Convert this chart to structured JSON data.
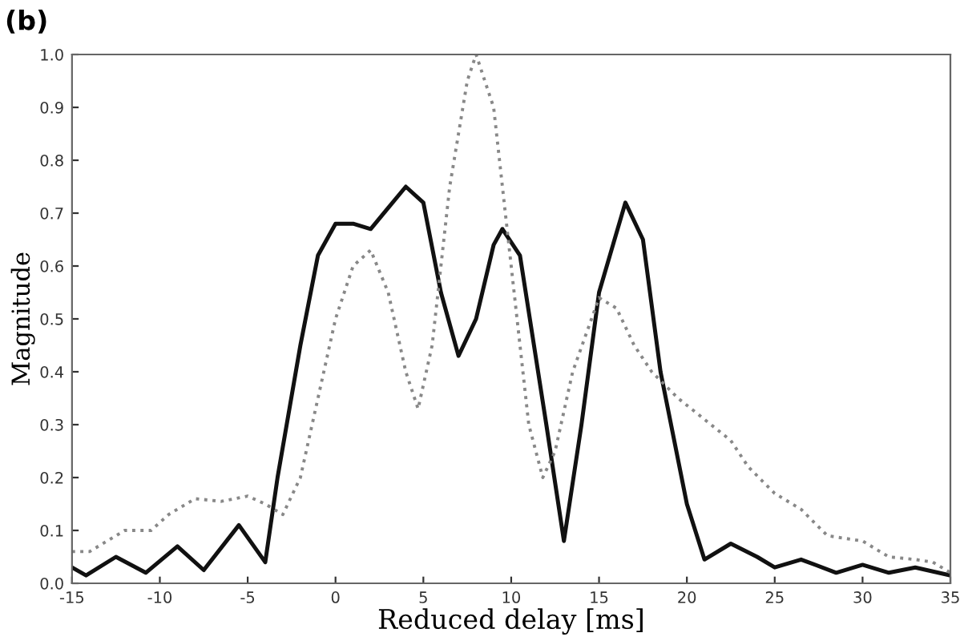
{
  "chart_data": {
    "type": "line",
    "title": "(b)",
    "xlabel": "Reduced delay [ms]",
    "ylabel": "Magnitude",
    "xlim": [
      -15,
      35
    ],
    "xticks": [
      -15,
      -10,
      -5,
      0,
      5,
      10,
      15,
      20,
      25,
      30,
      35
    ],
    "ylim": [
      0,
      1.0
    ],
    "yticks": [
      {
        "value": 0,
        "label": "0.0"
      },
      0.1,
      0.2,
      0.3,
      0.4,
      0.5,
      0.6,
      0.7,
      0.8,
      0.9,
      {
        "value": 1.0,
        "label": "1.0"
      }
    ],
    "grid": false,
    "legend": false,
    "series": [
      {
        "color": "#111111",
        "line_style": "solid",
        "x": [
          -15,
          -14.2,
          -12.5,
          -10.8,
          -9,
          -7.5,
          -5.5,
          -4,
          -3.3,
          -2,
          -1,
          0,
          1,
          2,
          3,
          4,
          5,
          6,
          7,
          8,
          9,
          9.5,
          10.5,
          12,
          13,
          14,
          15,
          16.5,
          17.5,
          18.5,
          20,
          21,
          22.5,
          24,
          25,
          26.5,
          28.5,
          30,
          31.5,
          33,
          35
        ],
        "values": [
          0.03,
          0.015,
          0.05,
          0.02,
          0.07,
          0.025,
          0.11,
          0.04,
          0.2,
          0.45,
          0.62,
          0.68,
          0.68,
          0.67,
          0.71,
          0.75,
          0.72,
          0.55,
          0.43,
          0.5,
          0.64,
          0.67,
          0.62,
          0.3,
          0.08,
          0.3,
          0.55,
          0.72,
          0.65,
          0.4,
          0.15,
          0.045,
          0.075,
          0.05,
          0.03,
          0.045,
          0.02,
          0.035,
          0.02,
          0.03,
          0.015
        ]
      },
      {
        "color": "#888888",
        "line_style": "dotted",
        "x": [
          -15,
          -14,
          -13,
          -12,
          -10.5,
          -9.5,
          -8,
          -6.5,
          -5,
          -4,
          -3,
          -2,
          -1,
          0,
          1,
          2,
          3,
          4,
          4.7,
          5.5,
          6.5,
          7.5,
          8,
          9,
          10,
          11,
          11.8,
          12.5,
          13.5,
          15,
          16,
          17,
          18,
          19.5,
          21,
          22.5,
          23.5,
          25,
          26.5,
          28,
          30,
          31.5,
          33,
          34,
          35
        ],
        "values": [
          0.06,
          0.06,
          0.08,
          0.1,
          0.1,
          0.13,
          0.16,
          0.155,
          0.165,
          0.15,
          0.13,
          0.2,
          0.35,
          0.5,
          0.6,
          0.63,
          0.55,
          0.4,
          0.33,
          0.45,
          0.75,
          0.95,
          1.0,
          0.9,
          0.6,
          0.3,
          0.2,
          0.25,
          0.4,
          0.54,
          0.52,
          0.45,
          0.4,
          0.35,
          0.31,
          0.27,
          0.22,
          0.17,
          0.14,
          0.09,
          0.08,
          0.05,
          0.045,
          0.04,
          0.02
        ]
      }
    ]
  }
}
